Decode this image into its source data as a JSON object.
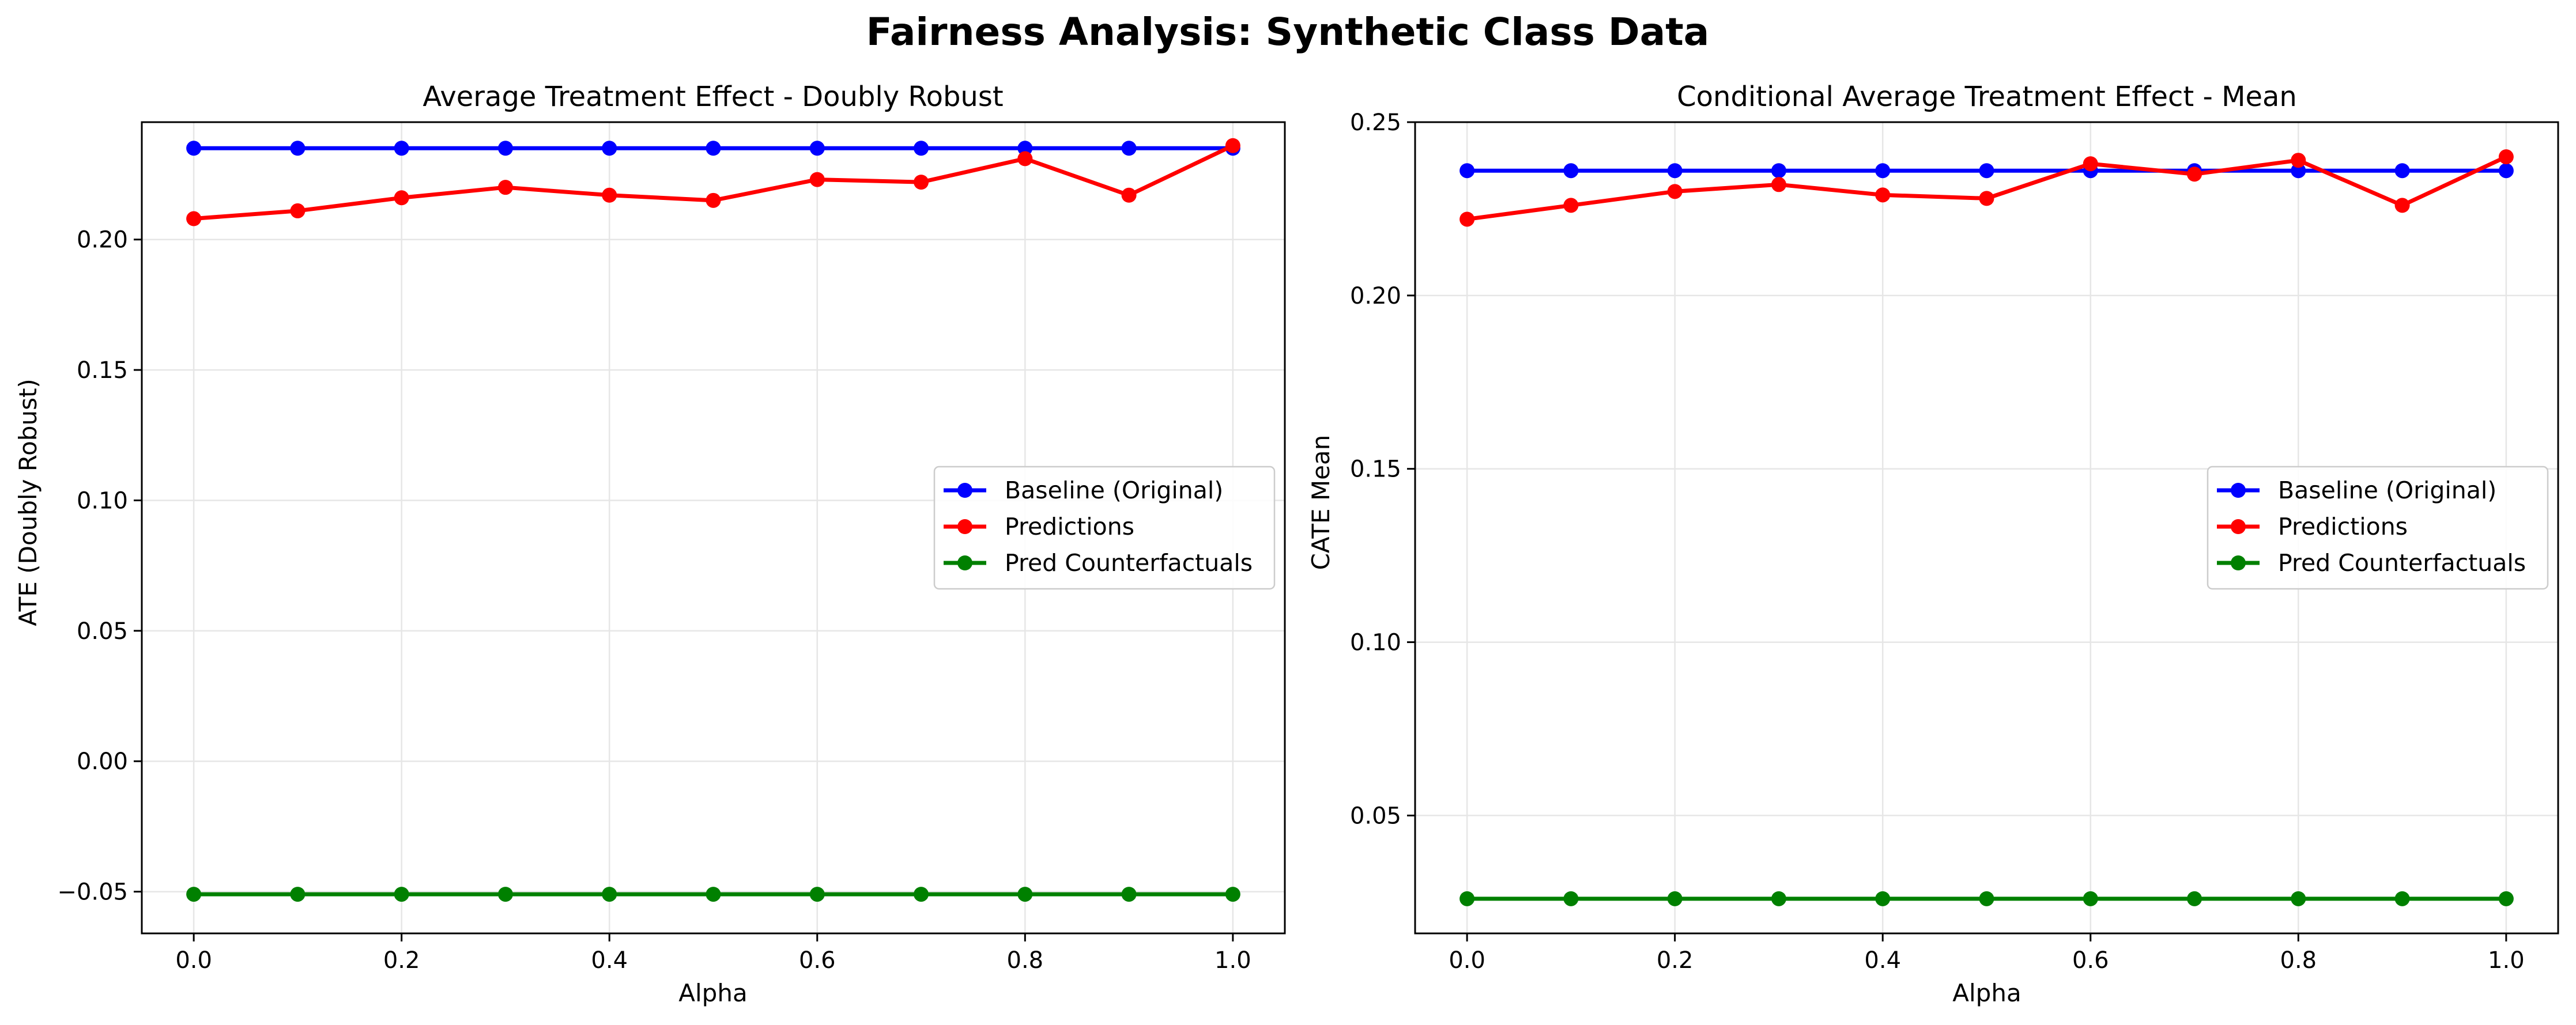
{
  "figure": {
    "title": "Fairness Analysis: Synthetic Class Data"
  },
  "colors": {
    "baseline": "#0000ff",
    "predictions": "#ff0000",
    "counterfactuals": "#008000",
    "grid": "#e6e6e6",
    "axes": "#000000",
    "legend_border": "#cccccc"
  },
  "chart_data": [
    {
      "type": "line",
      "title": "Average Treatment Effect - Doubly Robust",
      "xlabel": "Alpha",
      "ylabel": "ATE (Doubly Robust)",
      "xlim": [
        -0.05,
        1.05
      ],
      "ylim": [
        -0.066,
        0.245
      ],
      "xticks": [
        0.0,
        0.2,
        0.4,
        0.6,
        0.8,
        1.0
      ],
      "xtick_labels": [
        "0.0",
        "0.2",
        "0.4",
        "0.6",
        "0.8",
        "1.0"
      ],
      "yticks": [
        -0.05,
        0.0,
        0.05,
        0.1,
        0.15,
        0.2
      ],
      "ytick_labels": [
        "−0.05",
        "0.00",
        "0.05",
        "0.10",
        "0.15",
        "0.20"
      ],
      "grid": true,
      "legend_position": "center-right",
      "x": [
        0.0,
        0.1,
        0.2,
        0.3,
        0.4,
        0.5,
        0.6,
        0.7,
        0.8,
        0.9,
        1.0
      ],
      "series": [
        {
          "name": "Baseline (Original)",
          "color": "#0000ff",
          "values": [
            0.235,
            0.235,
            0.235,
            0.235,
            0.235,
            0.235,
            0.235,
            0.235,
            0.235,
            0.235,
            0.235
          ]
        },
        {
          "name": "Predictions",
          "color": "#ff0000",
          "values": [
            0.208,
            0.211,
            0.216,
            0.22,
            0.217,
            0.215,
            0.223,
            0.222,
            0.231,
            0.217,
            0.236
          ]
        },
        {
          "name": "Pred Counterfactuals",
          "color": "#008000",
          "values": [
            -0.051,
            -0.051,
            -0.051,
            -0.051,
            -0.051,
            -0.051,
            -0.051,
            -0.051,
            -0.051,
            -0.051,
            -0.051
          ]
        }
      ]
    },
    {
      "type": "line",
      "title": "Conditional Average Treatment Effect - Mean",
      "xlabel": "Alpha",
      "ylabel": "CATE Mean",
      "xlim": [
        -0.05,
        1.05
      ],
      "ylim": [
        0.016,
        0.25
      ],
      "xticks": [
        0.0,
        0.2,
        0.4,
        0.6,
        0.8,
        1.0
      ],
      "xtick_labels": [
        "0.0",
        "0.2",
        "0.4",
        "0.6",
        "0.8",
        "1.0"
      ],
      "yticks": [
        0.05,
        0.1,
        0.15,
        0.2,
        0.25
      ],
      "ytick_labels": [
        "0.05",
        "0.10",
        "0.15",
        "0.20",
        "0.25"
      ],
      "grid": true,
      "legend_position": "center-right",
      "x": [
        0.0,
        0.1,
        0.2,
        0.3,
        0.4,
        0.5,
        0.6,
        0.7,
        0.8,
        0.9,
        1.0
      ],
      "series": [
        {
          "name": "Baseline (Original)",
          "color": "#0000ff",
          "values": [
            0.236,
            0.236,
            0.236,
            0.236,
            0.236,
            0.236,
            0.236,
            0.236,
            0.236,
            0.236,
            0.236
          ]
        },
        {
          "name": "Predictions",
          "color": "#ff0000",
          "values": [
            0.222,
            0.226,
            0.23,
            0.232,
            0.229,
            0.228,
            0.238,
            0.235,
            0.239,
            0.226,
            0.24
          ]
        },
        {
          "name": "Pred Counterfactuals",
          "color": "#008000",
          "values": [
            0.026,
            0.026,
            0.026,
            0.026,
            0.026,
            0.026,
            0.026,
            0.026,
            0.026,
            0.026,
            0.026
          ]
        }
      ]
    }
  ]
}
